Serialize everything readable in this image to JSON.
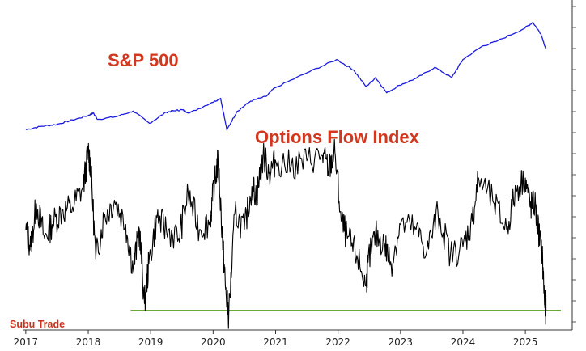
{
  "chart_data": [
    {
      "type": "line",
      "title": "S&P 500",
      "color": "#1c1ce0",
      "x_range": [
        2017.0,
        2025.42
      ],
      "y_range": [
        2200,
        6200
      ],
      "series": [
        {
          "name": "S&P 500",
          "x": [
            2017.0,
            2017.25,
            2017.5,
            2017.75,
            2018.0,
            2018.08,
            2018.15,
            2018.45,
            2018.72,
            2018.98,
            2019.25,
            2019.38,
            2019.5,
            2019.62,
            2019.98,
            2020.12,
            2020.22,
            2020.38,
            2020.6,
            2020.85,
            2020.98,
            2021.5,
            2021.98,
            2022.25,
            2022.45,
            2022.6,
            2022.78,
            2022.98,
            2023.25,
            2023.55,
            2023.82,
            2024.0,
            2024.3,
            2024.55,
            2024.98,
            2025.12,
            2025.25,
            2025.33
          ],
          "values": [
            2250,
            2370,
            2440,
            2600,
            2760,
            2850,
            2620,
            2720,
            2920,
            2480,
            2880,
            2930,
            2970,
            2850,
            3230,
            3380,
            2240,
            2900,
            3280,
            3450,
            3750,
            4300,
            4780,
            4400,
            3800,
            4130,
            3580,
            3850,
            4100,
            4500,
            4130,
            4780,
            5250,
            5450,
            5900,
            6120,
            5700,
            5150
          ]
        }
      ]
    },
    {
      "type": "line",
      "title": "Options Flow Index",
      "color": "#000000",
      "x_range": [
        2017.0,
        2025.42
      ],
      "y_range": [
        0,
        100
      ],
      "xlim": [
        2016.95,
        2025.75
      ],
      "x_ticks": [
        "2017",
        "2018",
        "2019",
        "2020",
        "2021",
        "2022",
        "2023",
        "2024",
        "2025"
      ],
      "reference_line": {
        "value": 8,
        "color": "#6aa83a",
        "x_start": 2018.68
      },
      "series": [
        {
          "name": "Options Flow Index",
          "x": [
            2017.0,
            2017.08,
            2017.17,
            2017.3,
            2017.42,
            2017.58,
            2017.75,
            2017.92,
            2018.0,
            2018.04,
            2018.12,
            2018.25,
            2018.42,
            2018.6,
            2018.72,
            2018.82,
            2018.9,
            2018.97,
            2019.1,
            2019.25,
            2019.45,
            2019.6,
            2019.78,
            2019.95,
            2020.02,
            2020.08,
            2020.15,
            2020.2,
            2020.25,
            2020.35,
            2020.5,
            2020.62,
            2020.7,
            2020.8,
            2020.9,
            2021.0,
            2021.25,
            2021.5,
            2021.75,
            2021.85,
            2021.95,
            2022.05,
            2022.15,
            2022.3,
            2022.45,
            2022.48,
            2022.6,
            2022.75,
            2022.85,
            2023.0,
            2023.25,
            2023.42,
            2023.6,
            2023.8,
            2024.0,
            2024.15,
            2024.25,
            2024.5,
            2024.7,
            2024.85,
            2025.0,
            2025.08,
            2025.15,
            2025.22,
            2025.27,
            2025.31,
            2025.33
          ],
          "values": [
            55,
            45,
            70,
            50,
            58,
            66,
            68,
            80,
            100,
            92,
            38,
            62,
            72,
            58,
            32,
            55,
            12,
            35,
            62,
            55,
            50,
            76,
            55,
            60,
            82,
            95,
            50,
            20,
            5,
            65,
            55,
            80,
            75,
            98,
            88,
            95,
            92,
            95,
            98,
            90,
            100,
            60,
            50,
            40,
            22,
            36,
            52,
            46,
            35,
            58,
            55,
            42,
            65,
            40,
            45,
            60,
            85,
            70,
            55,
            78,
            85,
            68,
            70,
            52,
            40,
            12,
            8
          ]
        }
      ]
    }
  ],
  "brand": "Subu Trade"
}
